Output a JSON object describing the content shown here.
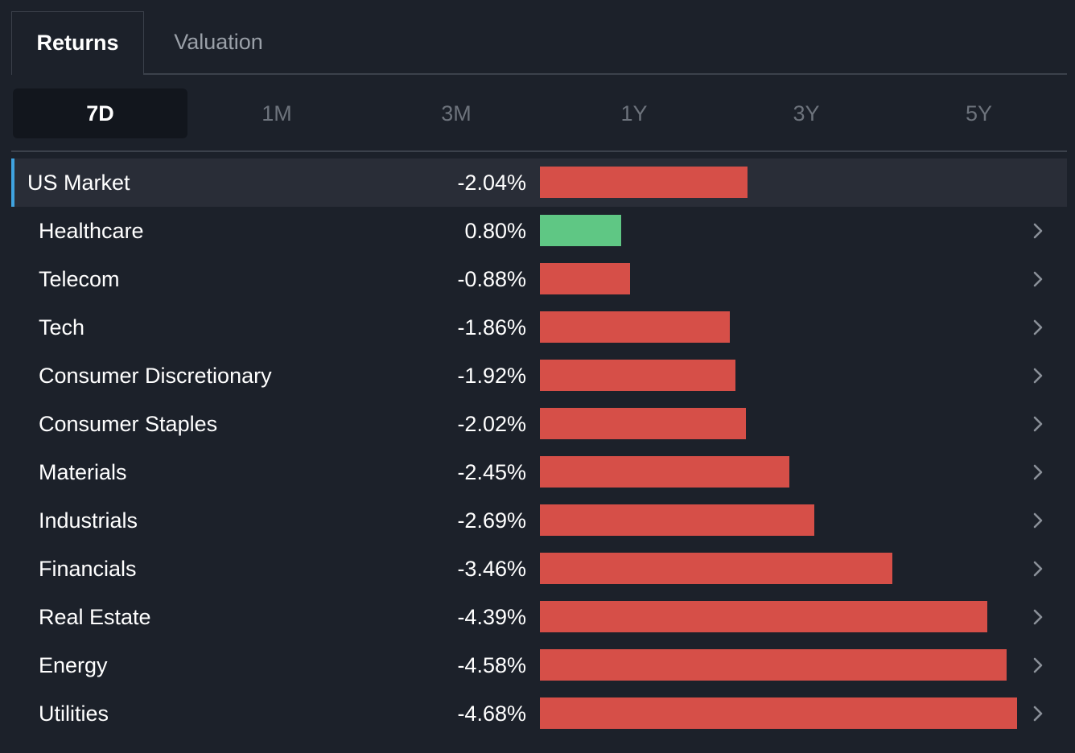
{
  "tabs": [
    {
      "label": "Returns",
      "active": true
    },
    {
      "label": "Valuation",
      "active": false
    }
  ],
  "periods": [
    {
      "label": "7D",
      "active": true
    },
    {
      "label": "1M",
      "active": false
    },
    {
      "label": "3M",
      "active": false
    },
    {
      "label": "1Y",
      "active": false
    },
    {
      "label": "3Y",
      "active": false
    },
    {
      "label": "5Y",
      "active": false
    }
  ],
  "colors": {
    "negative": "#d64f48",
    "positive": "#5fc784",
    "accent": "#3fa3e0"
  },
  "icons": {
    "row_chevron": "chevron-right-icon"
  },
  "chart_data": {
    "type": "bar",
    "orientation": "horizontal",
    "categories": [
      "US Market",
      "Healthcare",
      "Telecom",
      "Tech",
      "Consumer Discretionary",
      "Consumer Staples",
      "Materials",
      "Industrials",
      "Financials",
      "Real Estate",
      "Energy",
      "Utilities"
    ],
    "labels": [
      "-2.04%",
      "0.80%",
      "-0.88%",
      "-1.86%",
      "-1.92%",
      "-2.02%",
      "-2.45%",
      "-2.69%",
      "-3.46%",
      "-4.39%",
      "-4.58%",
      "-4.68%"
    ],
    "values": [
      -2.04,
      0.8,
      -0.88,
      -1.86,
      -1.92,
      -2.02,
      -2.45,
      -2.69,
      -3.46,
      -4.39,
      -4.58,
      -4.68
    ],
    "bar_magnitude": "absolute value",
    "highlighted": "US Market"
  }
}
